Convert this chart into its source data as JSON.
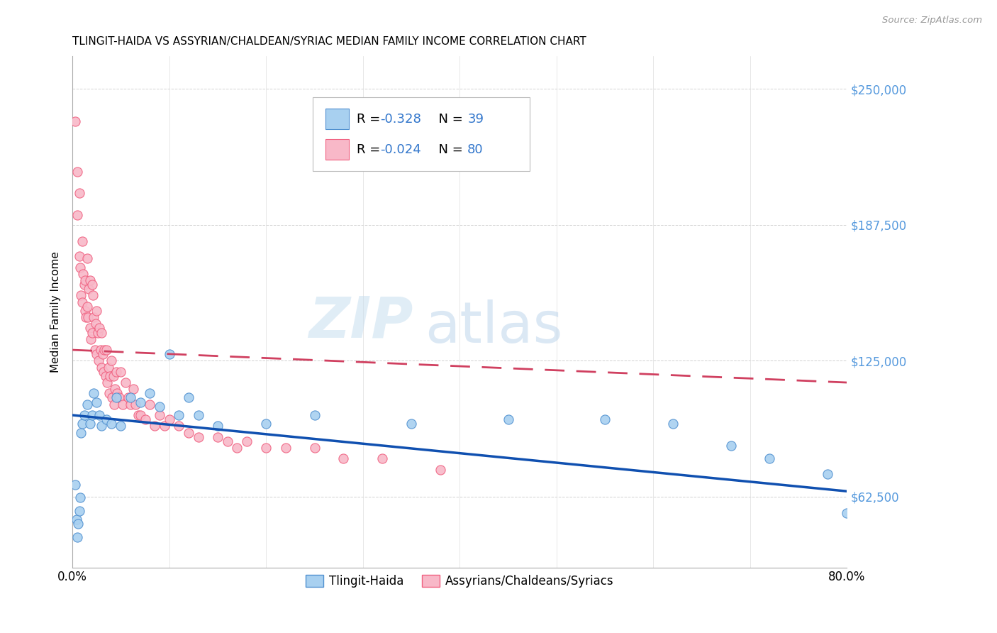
{
  "title": "TLINGIT-HAIDA VS ASSYRIAN/CHALDEAN/SYRIAC MEDIAN FAMILY INCOME CORRELATION CHART",
  "source": "Source: ZipAtlas.com",
  "ylabel": "Median Family Income",
  "watermark_zip": "ZIP",
  "watermark_atlas": "atlas",
  "xlim": [
    0,
    0.8
  ],
  "ylim": [
    30000,
    265000
  ],
  "yticks": [
    62500,
    125000,
    187500,
    250000
  ],
  "ytick_labels": [
    "$62,500",
    "$125,000",
    "$187,500",
    "$250,000"
  ],
  "xticks": [
    0.0,
    0.1,
    0.2,
    0.3,
    0.4,
    0.5,
    0.6,
    0.7,
    0.8
  ],
  "xtick_labels_show": [
    "0.0%",
    "",
    "",
    "",
    "",
    "",
    "",
    "",
    "80.0%"
  ],
  "tlingit_color": "#a8d0f0",
  "assyrian_color": "#f8b8c8",
  "tlingit_edge": "#5090d0",
  "assyrian_edge": "#f06080",
  "trendline_blue": "#1050b0",
  "trendline_pink": "#d04060",
  "legend_label_tlingit": "Tlingit-Haida",
  "legend_label_assyrian": "Assyrians/Chaldeans/Syriacs",
  "r1": "-0.328",
  "n1": "39",
  "r2": "-0.024",
  "n2": "80",
  "tlingit_x": [
    0.003,
    0.004,
    0.005,
    0.006,
    0.007,
    0.008,
    0.009,
    0.01,
    0.012,
    0.015,
    0.018,
    0.02,
    0.022,
    0.025,
    0.028,
    0.03,
    0.035,
    0.04,
    0.045,
    0.05,
    0.06,
    0.07,
    0.08,
    0.09,
    0.1,
    0.11,
    0.12,
    0.13,
    0.15,
    0.2,
    0.25,
    0.35,
    0.45,
    0.55,
    0.62,
    0.68,
    0.72,
    0.78,
    0.8
  ],
  "tlingit_y": [
    68000,
    52000,
    44000,
    50000,
    56000,
    62000,
    92000,
    96000,
    100000,
    105000,
    96000,
    100000,
    110000,
    106000,
    100000,
    95000,
    98000,
    96000,
    108000,
    95000,
    108000,
    106000,
    110000,
    104000,
    128000,
    100000,
    108000,
    100000,
    95000,
    96000,
    100000,
    96000,
    98000,
    98000,
    96000,
    86000,
    80000,
    73000,
    55000
  ],
  "assyrian_x": [
    0.003,
    0.005,
    0.005,
    0.007,
    0.007,
    0.008,
    0.009,
    0.01,
    0.01,
    0.011,
    0.012,
    0.013,
    0.013,
    0.014,
    0.015,
    0.015,
    0.016,
    0.017,
    0.018,
    0.018,
    0.019,
    0.02,
    0.02,
    0.021,
    0.022,
    0.023,
    0.024,
    0.025,
    0.025,
    0.026,
    0.027,
    0.028,
    0.029,
    0.03,
    0.03,
    0.031,
    0.032,
    0.033,
    0.034,
    0.035,
    0.036,
    0.037,
    0.038,
    0.039,
    0.04,
    0.041,
    0.042,
    0.043,
    0.044,
    0.045,
    0.046,
    0.048,
    0.05,
    0.052,
    0.055,
    0.058,
    0.06,
    0.063,
    0.065,
    0.068,
    0.07,
    0.075,
    0.08,
    0.085,
    0.09,
    0.095,
    0.1,
    0.11,
    0.12,
    0.13,
    0.15,
    0.16,
    0.17,
    0.18,
    0.2,
    0.22,
    0.25,
    0.28,
    0.32,
    0.38
  ],
  "assyrian_y": [
    235000,
    212000,
    192000,
    202000,
    173000,
    168000,
    155000,
    180000,
    152000,
    165000,
    160000,
    148000,
    162000,
    145000,
    172000,
    150000,
    145000,
    158000,
    162000,
    140000,
    135000,
    160000,
    138000,
    155000,
    145000,
    130000,
    142000,
    148000,
    128000,
    138000,
    125000,
    140000,
    130000,
    122000,
    138000,
    128000,
    120000,
    130000,
    118000,
    130000,
    115000,
    122000,
    110000,
    118000,
    125000,
    108000,
    118000,
    105000,
    112000,
    120000,
    110000,
    108000,
    120000,
    105000,
    115000,
    108000,
    105000,
    112000,
    105000,
    100000,
    100000,
    98000,
    105000,
    95000,
    100000,
    95000,
    98000,
    95000,
    92000,
    90000,
    90000,
    88000,
    85000,
    88000,
    85000,
    85000,
    85000,
    80000,
    80000,
    75000
  ]
}
